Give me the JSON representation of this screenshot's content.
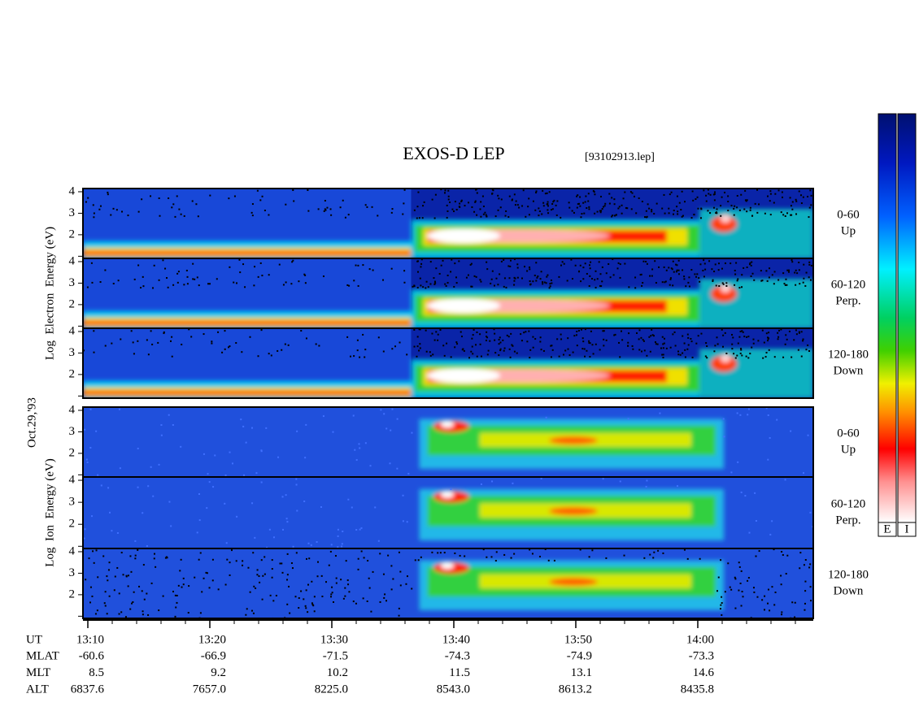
{
  "chart_data": {
    "type": "spectrogram",
    "title": "EXOS-D LEP",
    "file_label": "[93102913.lep]",
    "date_label": "Oct.29,'93",
    "groups": [
      {
        "species": "electron",
        "y_label": "Log  Electron  Energy (eV)",
        "panels": [
          {
            "channel": "0-60",
            "direction": "Up"
          },
          {
            "channel": "60-120",
            "direction": "Perp."
          },
          {
            "channel": "120-180",
            "direction": "Down"
          }
        ]
      },
      {
        "species": "ion",
        "y_label": "Log  Ion  Energy (eV)",
        "panels": [
          {
            "channel": "0-60",
            "direction": "Up"
          },
          {
            "channel": "60-120",
            "direction": "Perp."
          },
          {
            "channel": "120-180",
            "direction": "Down"
          }
        ]
      }
    ],
    "ylim": [
      0.9,
      4.15
    ],
    "yticks": [
      2,
      3,
      4
    ],
    "minor_yticks": [
      1
    ],
    "xlim": [
      "13:09:36",
      "14:09:28"
    ],
    "xticks": [
      "13:10",
      "13:20",
      "13:30",
      "13:40",
      "13:50",
      "14:00"
    ],
    "minor_xtick_interval_min": 2,
    "colorbar_labels": [
      "E",
      "I"
    ],
    "ephemeris": [
      {
        "name": "UT"
      },
      {
        "name": "MLAT",
        "values": [
          "-60.6",
          "-66.9",
          "-71.5",
          "-74.3",
          "-74.9",
          "-73.3"
        ]
      },
      {
        "name": "MLT",
        "values": [
          "8.5",
          "9.2",
          "10.2",
          "11.5",
          "13.1",
          "14.6"
        ]
      },
      {
        "name": "ALT",
        "values": [
          "6837.6",
          "7657.0",
          "8225.0",
          "8543.0",
          "8613.2",
          "8435.8"
        ]
      }
    ]
  }
}
